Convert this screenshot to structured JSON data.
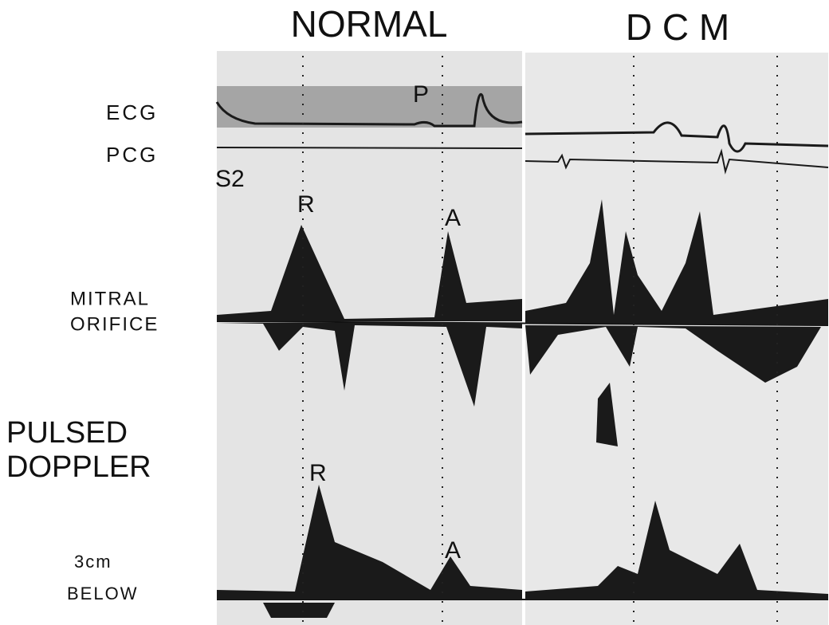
{
  "headers": {
    "normal": "NORMAL",
    "dcm": "D C M"
  },
  "row_labels": {
    "ecg": "ECG",
    "pcg": "PCG",
    "mitral": [
      "MITRAL",
      "ORIFICE"
    ],
    "pulsed": [
      "PULSED",
      "DOPPLER"
    ],
    "below": [
      "3cm",
      "BELOW"
    ]
  },
  "annotations": {
    "p": "P",
    "s2": "S2",
    "r_mitral": "R",
    "a_mitral": "A",
    "r_below": "R",
    "a_below": "A"
  }
}
